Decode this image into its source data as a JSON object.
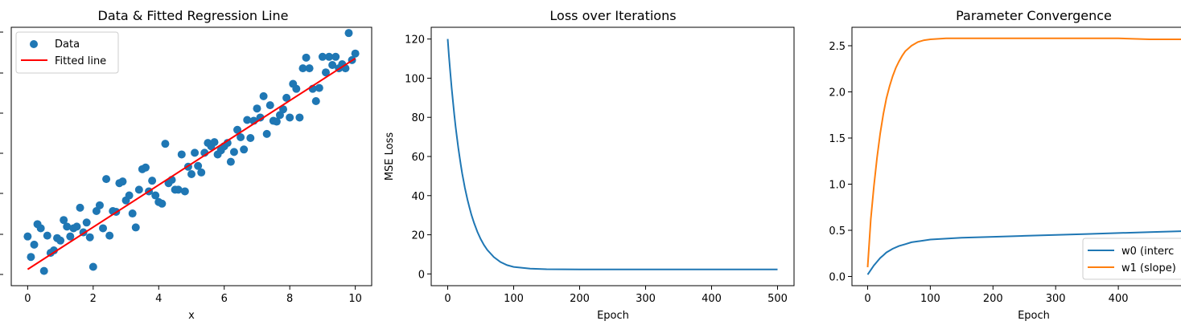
{
  "chart_data": [
    {
      "type": "scatter",
      "title": "Data & Fitted Regression Line",
      "xlabel": "x",
      "ylabel": "",
      "xlim": [
        -0.5,
        10.5
      ],
      "ylim": [
        -1.5,
        30
      ],
      "xticks": [
        0,
        2,
        4,
        6,
        8,
        10
      ],
      "grid": false,
      "legend": {
        "placement": "top-left",
        "entries": [
          "Data",
          "Fitted line"
        ]
      },
      "colors": {
        "points": "#1f77b4",
        "line": "#ff0000"
      },
      "series": [
        {
          "name": "Data",
          "kind": "points",
          "x": [
            0.0,
            0.1,
            0.2,
            0.3,
            0.4,
            0.5,
            0.6,
            0.7,
            0.8,
            0.9,
            1.0,
            1.1,
            1.2,
            1.3,
            1.4,
            1.5,
            1.6,
            1.7,
            1.8,
            1.9,
            2.0,
            2.1,
            2.2,
            2.3,
            2.4,
            2.5,
            2.6,
            2.7,
            2.8,
            2.9,
            3.0,
            3.1,
            3.2,
            3.3,
            3.4,
            3.5,
            3.6,
            3.7,
            3.8,
            3.9,
            4.0,
            4.1,
            4.2,
            4.3,
            4.4,
            4.5,
            4.6,
            4.7,
            4.8,
            4.9,
            5.0,
            5.1,
            5.2,
            5.3,
            5.4,
            5.5,
            5.6,
            5.7,
            5.8,
            5.9,
            6.0,
            6.1,
            6.2,
            6.3,
            6.4,
            6.5,
            6.6,
            6.7,
            6.8,
            6.9,
            7.0,
            7.1,
            7.2,
            7.3,
            7.4,
            7.5,
            7.6,
            7.7,
            7.8,
            7.9,
            8.0,
            8.1,
            8.2,
            8.3,
            8.4,
            8.5,
            8.6,
            8.7,
            8.8,
            8.9,
            9.0,
            9.1,
            9.2,
            9.3,
            9.4,
            9.5,
            9.6,
            9.7,
            9.8,
            9.9,
            10.0
          ],
          "y": [
            4.5,
            2.0,
            3.5,
            6.0,
            5.5,
            0.3,
            4.6,
            2.5,
            2.8,
            4.3,
            4.0,
            6.5,
            5.7,
            4.5,
            5.5,
            5.7,
            8.0,
            5.0,
            6.2,
            4.4,
            0.8,
            7.6,
            8.3,
            5.5,
            11.5,
            4.6,
            7.6,
            7.5,
            11.0,
            11.2,
            8.9,
            9.5,
            7.3,
            5.6,
            10.2,
            12.7,
            12.9,
            10.0,
            11.3,
            9.5,
            8.7,
            8.5,
            15.8,
            11.0,
            11.4,
            10.2,
            10.2,
            14.5,
            10.0,
            13.0,
            12.1,
            14.7,
            13.1,
            12.3,
            14.7,
            15.9,
            15.5,
            16.0,
            14.5,
            15.0,
            15.5,
            15.9,
            13.6,
            14.8,
            17.5,
            16.6,
            15.1,
            18.7,
            16.5,
            18.6,
            20.1,
            19.0,
            21.6,
            17.0,
            20.5,
            18.6,
            18.5,
            19.3,
            20.0,
            21.4,
            19.0,
            23.1,
            22.5,
            19.0,
            25.0,
            26.3,
            25.0,
            22.5,
            21.0,
            22.6,
            26.4,
            24.5,
            26.4,
            25.4,
            26.4,
            25.0,
            25.5,
            25.0,
            29.3,
            26.0,
            26.8
          ]
        },
        {
          "name": "Fitted line",
          "kind": "line",
          "x": [
            0,
            10
          ],
          "y": [
            0.5,
            26.2
          ]
        }
      ]
    },
    {
      "type": "line",
      "title": "Loss over Iterations",
      "xlabel": "Epoch",
      "ylabel": "MSE Loss",
      "xlim": [
        -25,
        525
      ],
      "ylim": [
        -6,
        126
      ],
      "xticks": [
        0,
        100,
        200,
        300,
        400,
        500
      ],
      "yticks": [
        0,
        20,
        40,
        60,
        80,
        100,
        120
      ],
      "grid": false,
      "colors": {
        "line": "#1f77b4"
      },
      "series": [
        {
          "name": "",
          "x": [
            0,
            2,
            4,
            6,
            8,
            10,
            12,
            14,
            16,
            18,
            20,
            22,
            24,
            26,
            28,
            30,
            33,
            36,
            40,
            45,
            50,
            55,
            60,
            70,
            80,
            90,
            100,
            125,
            150,
            200,
            250,
            300,
            350,
            400,
            450,
            500
          ],
          "y": [
            120,
            111.0,
            102.6,
            95.0,
            87.9,
            81.3,
            75.3,
            69.7,
            64.6,
            59.8,
            55.4,
            51.3,
            47.6,
            44.1,
            40.9,
            37.9,
            33.9,
            30.2,
            26.0,
            21.5,
            17.8,
            14.8,
            12.3,
            8.6,
            6.1,
            4.5,
            3.6,
            2.7,
            2.4,
            2.3,
            2.3,
            2.3,
            2.3,
            2.3,
            2.3,
            2.3
          ]
        }
      ]
    },
    {
      "type": "line",
      "title": "Parameter Convergence",
      "xlabel": "Epoch",
      "ylabel": "",
      "xlim": [
        -25,
        500
      ],
      "ylim": [
        -0.1,
        2.7
      ],
      "xticks": [
        0,
        100,
        200,
        300,
        400
      ],
      "yticks": [
        0.0,
        0.5,
        1.0,
        1.5,
        2.0,
        2.5
      ],
      "grid": false,
      "legend": {
        "placement": "bottom-right",
        "entries": [
          "w0 (interc",
          "w1 (slope)"
        ]
      },
      "colors": {
        "w0": "#1f77b4",
        "w1": "#ff7f0e"
      },
      "series": [
        {
          "name": "w0 (interc",
          "x": [
            0,
            5,
            10,
            15,
            20,
            25,
            30,
            40,
            50,
            60,
            70,
            80,
            100,
            125,
            150,
            200,
            250,
            300,
            350,
            400,
            450,
            500
          ],
          "y": [
            0.02,
            0.07,
            0.12,
            0.16,
            0.2,
            0.23,
            0.26,
            0.3,
            0.33,
            0.35,
            0.37,
            0.38,
            0.4,
            0.41,
            0.42,
            0.43,
            0.44,
            0.45,
            0.46,
            0.47,
            0.48,
            0.49
          ]
        },
        {
          "name": "w1 (slope)",
          "x": [
            0,
            5,
            10,
            15,
            20,
            25,
            30,
            35,
            40,
            45,
            50,
            55,
            60,
            70,
            80,
            90,
            100,
            125,
            150,
            200,
            250,
            300,
            350,
            400,
            450,
            500
          ],
          "y": [
            0.1,
            0.62,
            0.98,
            1.29,
            1.55,
            1.76,
            1.93,
            2.06,
            2.17,
            2.26,
            2.33,
            2.39,
            2.44,
            2.5,
            2.54,
            2.56,
            2.57,
            2.58,
            2.58,
            2.58,
            2.58,
            2.58,
            2.58,
            2.58,
            2.57,
            2.57
          ]
        }
      ]
    }
  ]
}
